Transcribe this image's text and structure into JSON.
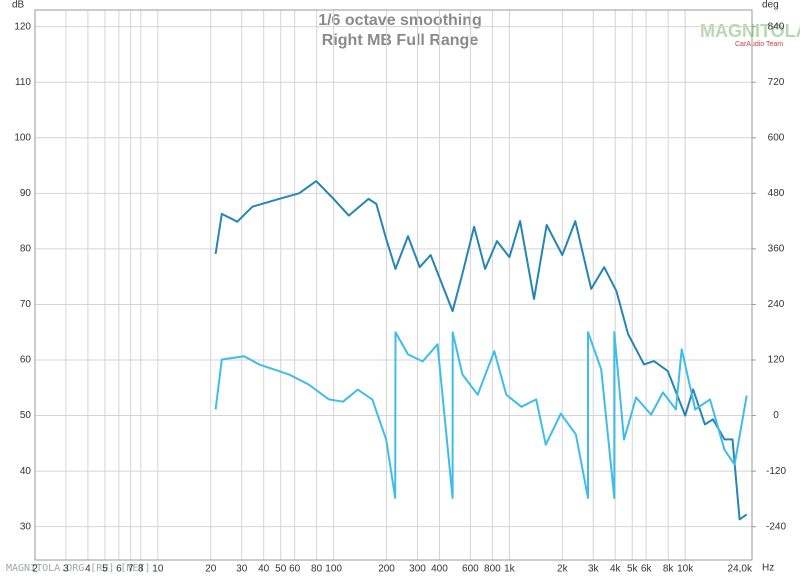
{
  "chart_data": {
    "type": "line",
    "title": "1/6 octave smoothing",
    "subtitle": "Right MB Full Range",
    "y_label": "dB",
    "y2_label": "deg",
    "x_label": "Hz",
    "watermark": "MAGNITOLA.ORG [RU] [NET]",
    "logo": "MAGNITOLA",
    "logo_subtitle": "CarAudio Team",
    "log_x": true,
    "grid": true,
    "xlim": [
      2,
      24000
    ],
    "xticks": [
      2,
      3,
      4,
      5,
      6,
      7,
      8,
      10,
      20,
      30,
      40,
      50,
      60,
      80,
      100,
      200,
      300,
      400,
      600,
      800,
      {
        "value": 1000,
        "label": "1k"
      },
      {
        "value": 2000,
        "label": "2k"
      },
      {
        "value": 3000,
        "label": "3k"
      },
      {
        "value": 4000,
        "label": "4k"
      },
      {
        "value": 5000,
        "label": "5k"
      },
      {
        "value": 6000,
        "label": "6k"
      },
      {
        "value": 8000,
        "label": "8k"
      },
      {
        "value": 10000,
        "label": "10k"
      },
      {
        "value": 24000,
        "label": "24,0k"
      }
    ],
    "ylim": [
      24,
      123
    ],
    "yticks": [
      30,
      40,
      50,
      60,
      70,
      80,
      90,
      100,
      110,
      120
    ],
    "y2lim": [
      -312,
      876
    ],
    "y2ticks": [
      -240,
      -120,
      0,
      120,
      240,
      360,
      480,
      600,
      720,
      840
    ],
    "series": [
      {
        "color": "#2586b3",
        "x": [
          21.3,
          23.1,
          28.3,
          34.5,
          48.9,
          63.6,
          79.6,
          100,
          122,
          158,
          175,
          199,
          225,
          265,
          309,
          356,
          475,
          540,
          630,
          727,
          850,
          1000,
          1150,
          1380,
          1630,
          2000,
          2370,
          2920,
          3460,
          4060,
          4730,
          5830,
          6640,
          7960,
          10000,
          11100,
          12950,
          14400,
          16750,
          18600,
          20400,
          22400
        ],
        "values": [
          79.1,
          86.3,
          84.9,
          87.6,
          89,
          90,
          92.2,
          89,
          86,
          89,
          88.1,
          81.8,
          76.4,
          82.3,
          76.7,
          78.9,
          68.8,
          75.5,
          84,
          76.4,
          81.4,
          78.5,
          85,
          71,
          84.3,
          78.9,
          85,
          72.8,
          76.7,
          72.4,
          64.7,
          59.2,
          59.8,
          58,
          50,
          54.7,
          48.4,
          49.3,
          45.7,
          45.7,
          31.3,
          32.2
        ]
      },
      {
        "color": "#3fbde8",
        "axis": "y2",
        "x": [
          21.3,
          23.1,
          31,
          37.8,
          55.6,
          72,
          94,
          113,
          137,
          166,
          199,
          224,
          225,
          265,
          321,
          390,
          475,
          476,
          540,
          660,
          820,
          960,
          1170,
          1420,
          1610,
          1960,
          2390,
          2800,
          2801,
          3330,
          3950,
          3951,
          4490,
          5260,
          6400,
          7470,
          8860,
          9550,
          11400,
          13850,
          16750,
          19100,
          22400
        ],
        "values": [
          13,
          121,
          128,
          110,
          89,
          67,
          35,
          30,
          56,
          35,
          -52,
          -178,
          180,
          132,
          117,
          154,
          -178,
          180,
          89,
          45,
          139,
          45,
          19,
          35,
          -63,
          4,
          -41,
          -178,
          180,
          100,
          -178,
          180,
          -52,
          39,
          2,
          50,
          13,
          143,
          13,
          35,
          -74,
          -106,
          43
        ]
      }
    ]
  }
}
